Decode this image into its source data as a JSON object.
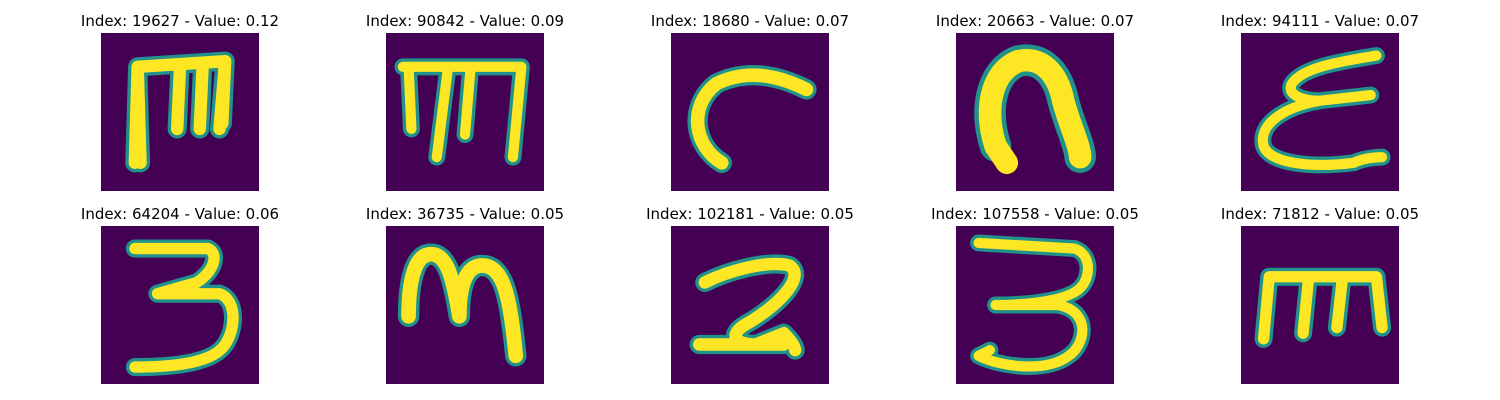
{
  "colors": {
    "background": "#440154",
    "stroke_core": "#fde725",
    "stroke_mid": "#5ec962",
    "stroke_edge": "#21918c"
  },
  "grid": {
    "rows": 2,
    "cols": 5,
    "items": [
      {
        "title": "Index: 19627 - Value: 0.12",
        "glyph": "m-upright"
      },
      {
        "title": "Index: 90842 - Value: 0.09",
        "glyph": "m-upright-thin"
      },
      {
        "title": "Index: 18680 - Value: 0.07",
        "glyph": "c-like"
      },
      {
        "title": "Index: 20663 - Value: 0.07",
        "glyph": "n-arch"
      },
      {
        "title": "Index: 94111 - Value: 0.07",
        "glyph": "epsilon"
      },
      {
        "title": "Index: 64204 - Value: 0.06",
        "glyph": "three"
      },
      {
        "title": "Index: 36735 - Value: 0.05",
        "glyph": "m-cursive"
      },
      {
        "title": "Index: 102181 - Value: 0.05",
        "glyph": "two"
      },
      {
        "title": "Index: 107558 - Value: 0.05",
        "glyph": "three-loop"
      },
      {
        "title": "Index: 71812 - Value: 0.05",
        "glyph": "m-lower"
      }
    ]
  }
}
